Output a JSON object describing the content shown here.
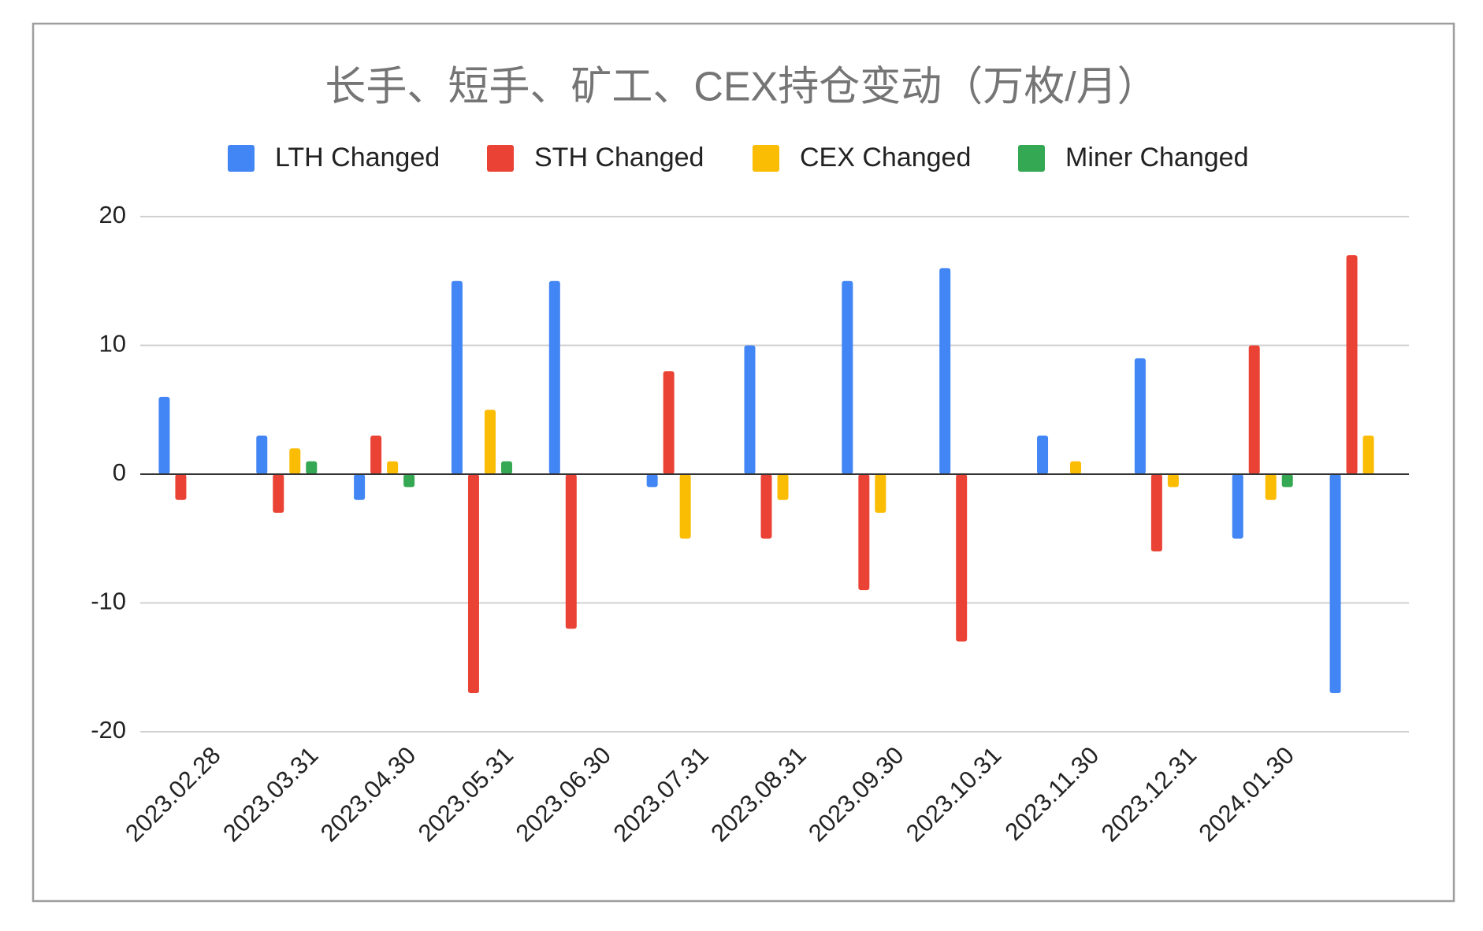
{
  "chart_data": {
    "type": "bar",
    "title": "长手、短手、矿工、CEX持仓变动（万枚/月）",
    "categories": [
      "2023.02.28",
      "2023.03.31",
      "2023.04.30",
      "2023.05.31",
      "2023.06.30",
      "2023.07.31",
      "2023.08.31",
      "2023.09.30",
      "2023.10.31",
      "2023.11.30",
      "2023.12.31",
      "2024.01.30",
      null
    ],
    "series": [
      {
        "name": "LTH Changed",
        "color": "#4285f4",
        "values": [
          6,
          3,
          -2,
          15,
          15,
          -1,
          10,
          15,
          16,
          3,
          9,
          -5,
          -17
        ]
      },
      {
        "name": "STH Changed",
        "color": "#ea4335",
        "values": [
          -2,
          -3,
          3,
          -17,
          -12,
          8,
          -5,
          -9,
          -13,
          0,
          -6,
          10,
          17
        ]
      },
      {
        "name": "CEX Changed",
        "color": "#fbbc04",
        "values": [
          0,
          2,
          1,
          5,
          0,
          -5,
          -2,
          -3,
          0,
          1,
          -1,
          -2,
          3
        ]
      },
      {
        "name": "Miner Changed",
        "color": "#34a853",
        "values": [
          0,
          1,
          -1,
          1,
          0,
          0,
          0,
          0,
          0,
          0,
          0,
          -1,
          0
        ]
      }
    ],
    "ylim": [
      -20,
      20
    ],
    "yticks": [
      -20,
      -10,
      0,
      10,
      20
    ],
    "grid": true,
    "legend": "top"
  }
}
